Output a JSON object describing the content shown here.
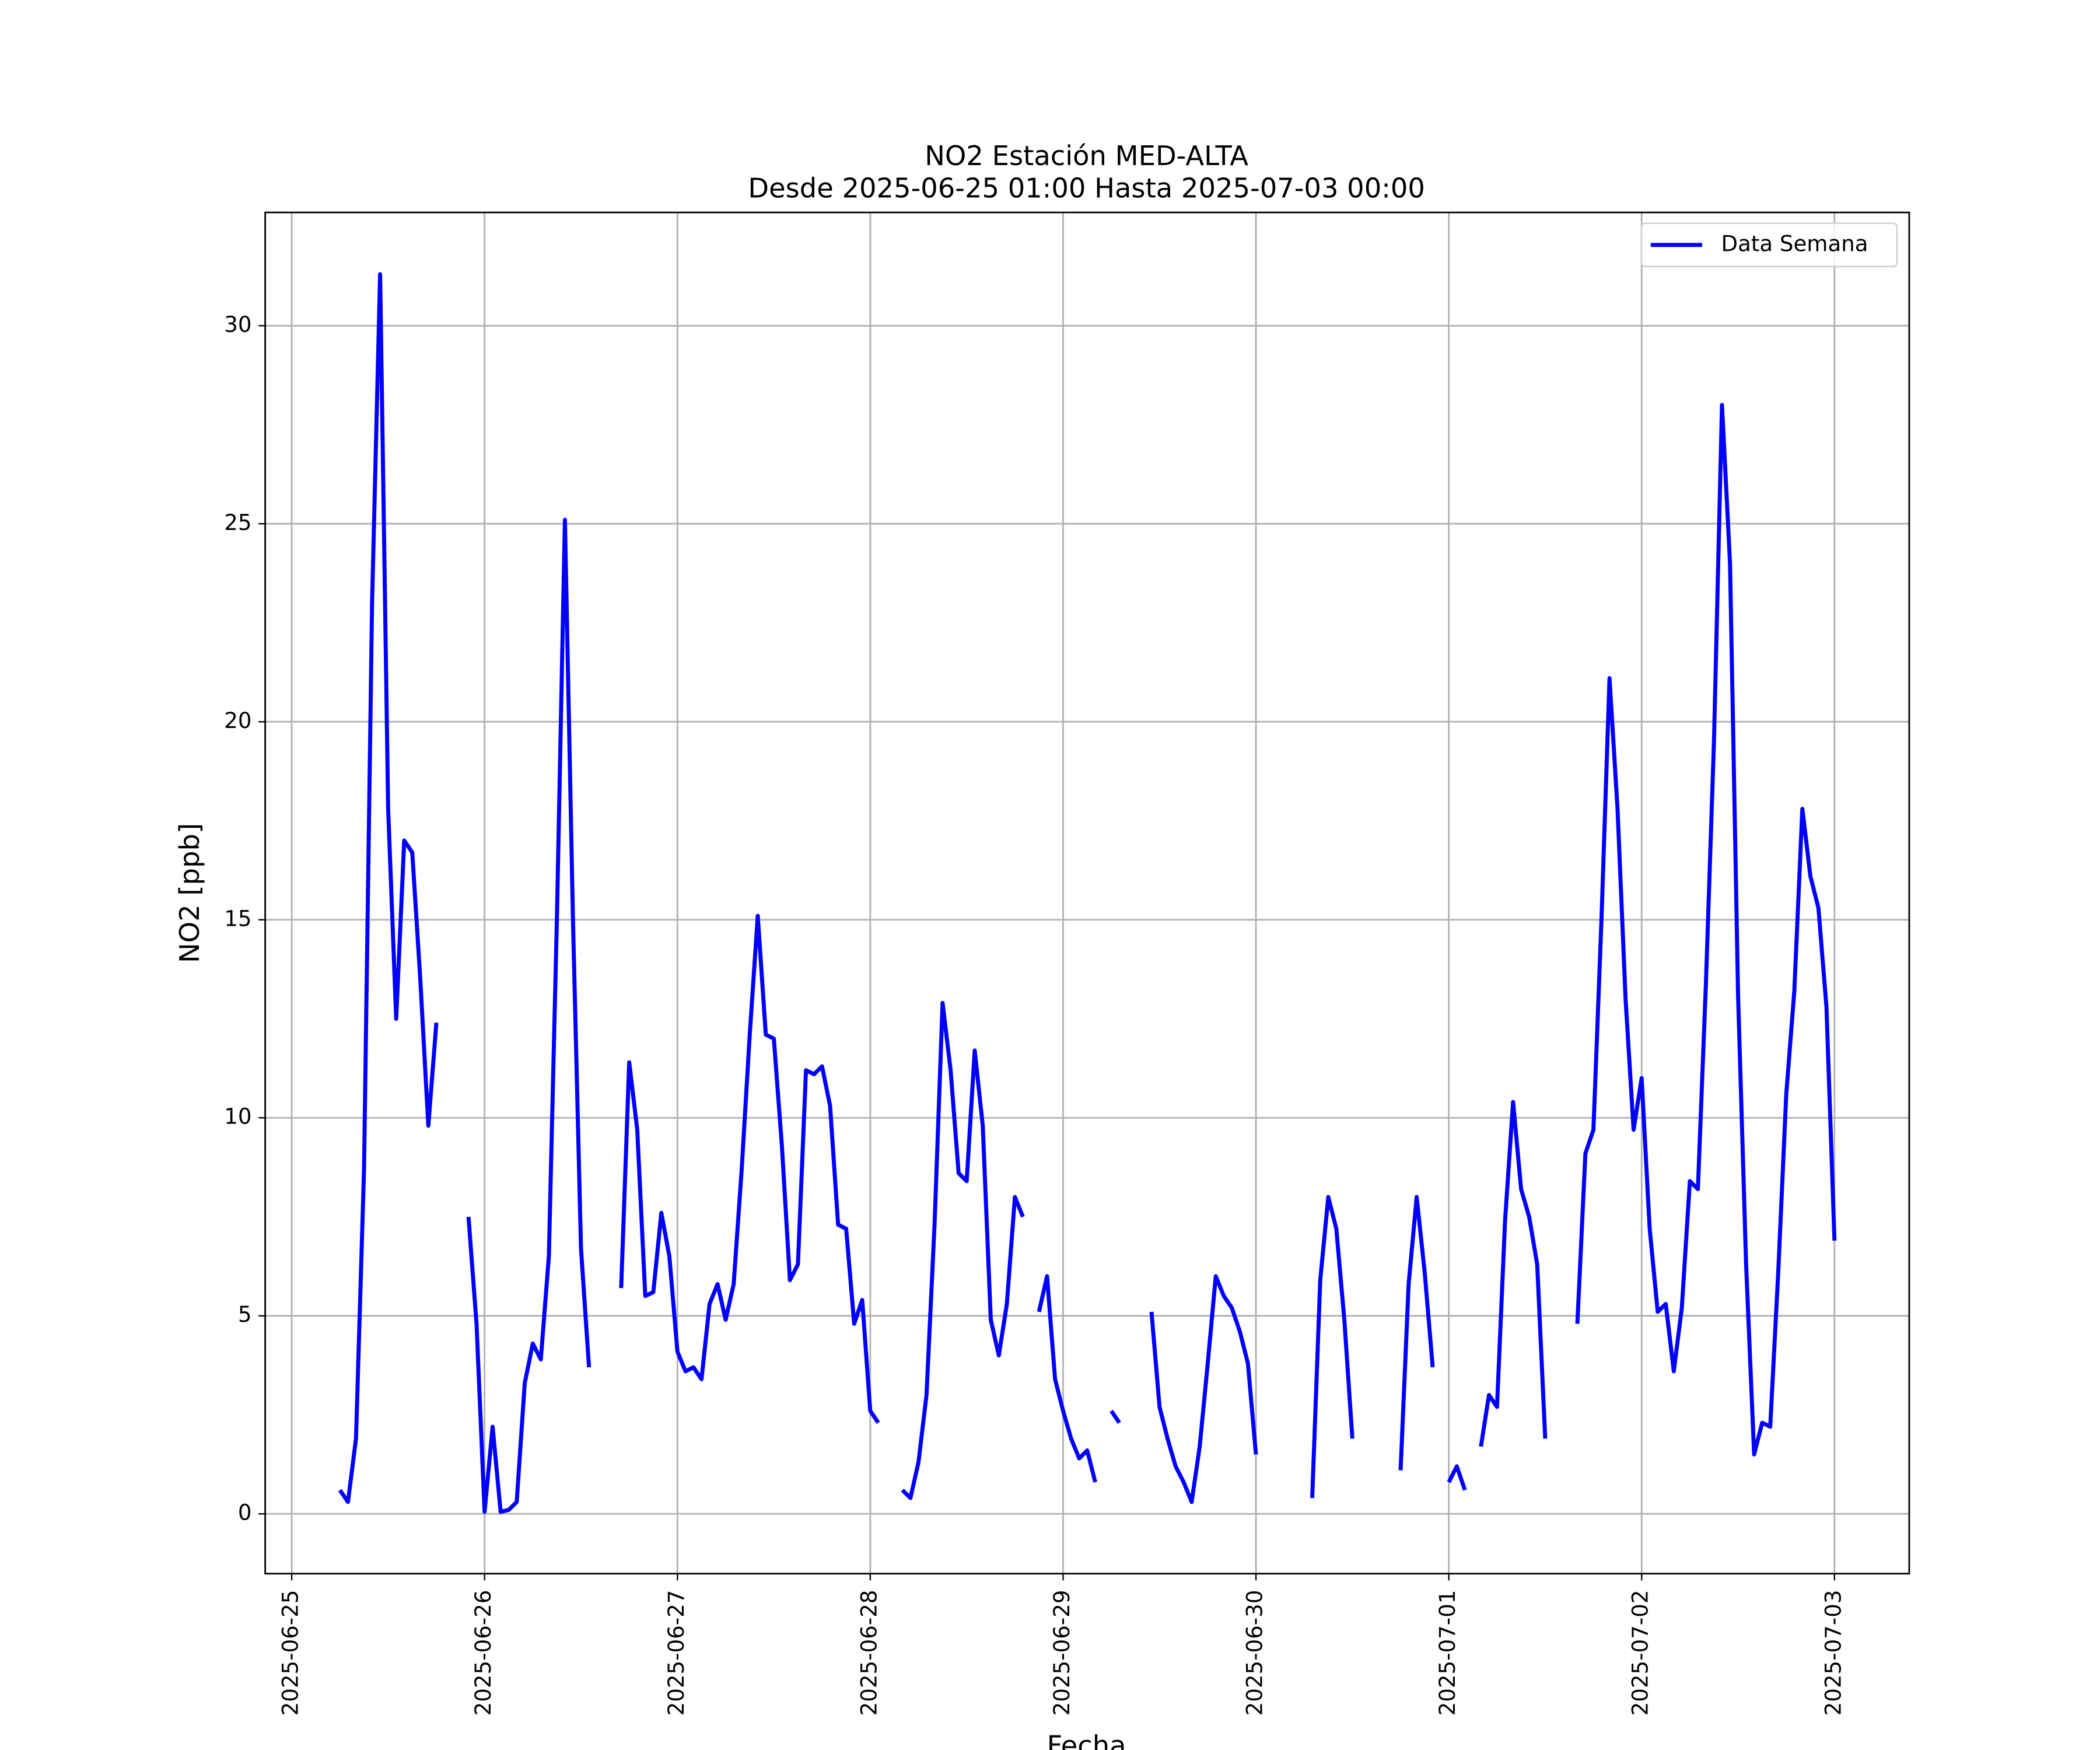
{
  "chart_data": {
    "type": "line",
    "title": "NO2 Estación MED-ALTA",
    "subtitle": "Desde 2025-06-25 01:00 Hasta 2025-07-03 00:00",
    "x_label": "Fecha",
    "y_label": "NO2 [ppb]",
    "legend": "upper right",
    "grid": true,
    "xlim": [
      "2025-06-24 20:42",
      "2025-07-03 09:18"
    ],
    "xticks": [
      "2025-06-25",
      "2025-06-26",
      "2025-06-27",
      "2025-06-28",
      "2025-06-29",
      "2025-06-30",
      "2025-07-01",
      "2025-07-02",
      "2025-07-03"
    ],
    "ylim": [
      -1.51,
      32.86
    ],
    "yticks": [
      0,
      5,
      10,
      15,
      20,
      25,
      30
    ],
    "x": [
      "2025-06-25 01:00",
      "2025-06-25 02:00",
      "2025-06-25 03:00",
      "2025-06-25 04:00",
      "2025-06-25 05:00",
      "2025-06-25 06:00",
      "2025-06-25 07:00",
      "2025-06-25 08:00",
      "2025-06-25 09:00",
      "2025-06-25 10:00",
      "2025-06-25 11:00",
      "2025-06-25 12:00",
      "2025-06-25 13:00",
      "2025-06-25 14:00",
      "2025-06-25 15:00",
      "2025-06-25 16:00",
      "2025-06-25 17:00",
      "2025-06-25 18:00",
      "2025-06-25 19:00",
      "2025-06-25 20:00",
      "2025-06-25 21:00",
      "2025-06-25 22:00",
      "2025-06-25 23:00",
      "2025-06-26 00:00",
      "2025-06-26 01:00",
      "2025-06-26 02:00",
      "2025-06-26 03:00",
      "2025-06-26 04:00",
      "2025-06-26 05:00",
      "2025-06-26 06:00",
      "2025-06-26 07:00",
      "2025-06-26 08:00",
      "2025-06-26 09:00",
      "2025-06-26 10:00",
      "2025-06-26 11:00",
      "2025-06-26 12:00",
      "2025-06-26 13:00",
      "2025-06-26 14:00",
      "2025-06-26 15:00",
      "2025-06-26 16:00",
      "2025-06-26 17:00",
      "2025-06-26 18:00",
      "2025-06-26 19:00",
      "2025-06-26 20:00",
      "2025-06-26 21:00",
      "2025-06-26 22:00",
      "2025-06-26 23:00",
      "2025-06-27 00:00",
      "2025-06-27 01:00",
      "2025-06-27 02:00",
      "2025-06-27 03:00",
      "2025-06-27 04:00",
      "2025-06-27 05:00",
      "2025-06-27 06:00",
      "2025-06-27 07:00",
      "2025-06-27 08:00",
      "2025-06-27 09:00",
      "2025-06-27 10:00",
      "2025-06-27 11:00",
      "2025-06-27 12:00",
      "2025-06-27 13:00",
      "2025-06-27 14:00",
      "2025-06-27 15:00",
      "2025-06-27 16:00",
      "2025-06-27 17:00",
      "2025-06-27 18:00",
      "2025-06-27 19:00",
      "2025-06-27 20:00",
      "2025-06-27 21:00",
      "2025-06-27 22:00",
      "2025-06-27 23:00",
      "2025-06-28 00:00",
      "2025-06-28 01:00",
      "2025-06-28 02:00",
      "2025-06-28 03:00",
      "2025-06-28 04:00",
      "2025-06-28 05:00",
      "2025-06-28 06:00",
      "2025-06-28 07:00",
      "2025-06-28 08:00",
      "2025-06-28 09:00",
      "2025-06-28 10:00",
      "2025-06-28 11:00",
      "2025-06-28 12:00",
      "2025-06-28 13:00",
      "2025-06-28 14:00",
      "2025-06-28 15:00",
      "2025-06-28 16:00",
      "2025-06-28 17:00",
      "2025-06-28 18:00",
      "2025-06-28 19:00",
      "2025-06-28 20:00",
      "2025-06-28 21:00",
      "2025-06-28 22:00",
      "2025-06-28 23:00",
      "2025-06-29 00:00",
      "2025-06-29 01:00",
      "2025-06-29 02:00",
      "2025-06-29 03:00",
      "2025-06-29 04:00",
      "2025-06-29 05:00",
      "2025-06-29 06:00",
      "2025-06-29 07:00",
      "2025-06-29 08:00",
      "2025-06-29 09:00",
      "2025-06-29 10:00",
      "2025-06-29 11:00",
      "2025-06-29 12:00",
      "2025-06-29 13:00",
      "2025-06-29 14:00",
      "2025-06-29 15:00",
      "2025-06-29 16:00",
      "2025-06-29 17:00",
      "2025-06-29 18:00",
      "2025-06-29 19:00",
      "2025-06-29 20:00",
      "2025-06-29 21:00",
      "2025-06-29 22:00",
      "2025-06-29 23:00",
      "2025-06-30 00:00",
      "2025-06-30 01:00",
      "2025-06-30 02:00",
      "2025-06-30 03:00",
      "2025-06-30 04:00",
      "2025-06-30 05:00",
      "2025-06-30 06:00",
      "2025-06-30 07:00",
      "2025-06-30 08:00",
      "2025-06-30 09:00",
      "2025-06-30 10:00",
      "2025-06-30 11:00",
      "2025-06-30 12:00",
      "2025-06-30 13:00",
      "2025-06-30 14:00",
      "2025-06-30 15:00",
      "2025-06-30 16:00",
      "2025-06-30 17:00",
      "2025-06-30 18:00",
      "2025-06-30 19:00",
      "2025-06-30 20:00",
      "2025-06-30 21:00",
      "2025-06-30 22:00",
      "2025-06-30 23:00",
      "2025-07-01 00:00",
      "2025-07-01 01:00",
      "2025-07-01 02:00",
      "2025-07-01 03:00",
      "2025-07-01 04:00",
      "2025-07-01 05:00",
      "2025-07-01 06:00",
      "2025-07-01 07:00",
      "2025-07-01 08:00",
      "2025-07-01 09:00",
      "2025-07-01 10:00",
      "2025-07-01 11:00",
      "2025-07-01 12:00",
      "2025-07-01 13:00",
      "2025-07-01 14:00",
      "2025-07-01 15:00",
      "2025-07-01 16:00",
      "2025-07-01 17:00",
      "2025-07-01 18:00",
      "2025-07-01 19:00",
      "2025-07-01 20:00",
      "2025-07-01 21:00",
      "2025-07-01 22:00",
      "2025-07-01 23:00",
      "2025-07-02 00:00",
      "2025-07-02 01:00",
      "2025-07-02 02:00",
      "2025-07-02 03:00",
      "2025-07-02 04:00",
      "2025-07-02 05:00",
      "2025-07-02 06:00",
      "2025-07-02 07:00",
      "2025-07-02 08:00",
      "2025-07-02 09:00",
      "2025-07-02 10:00",
      "2025-07-02 11:00",
      "2025-07-02 12:00",
      "2025-07-02 13:00",
      "2025-07-02 14:00",
      "2025-07-02 15:00",
      "2025-07-02 16:00",
      "2025-07-02 17:00",
      "2025-07-02 18:00",
      "2025-07-02 19:00",
      "2025-07-02 20:00",
      "2025-07-02 21:00",
      "2025-07-02 22:00",
      "2025-07-02 23:00",
      "2025-07-03 00:00"
    ],
    "series": [
      {
        "name": "Data Semana",
        "color": "#0000ff",
        "values": [
          null,
          null,
          null,
          null,
          null,
          0.6,
          0.3,
          1.9,
          8.7,
          23,
          31.3,
          17.8,
          12.5,
          17.0,
          16.7,
          13.5,
          9.8,
          12.4,
          null,
          null,
          null,
          7.5,
          4.8,
          0.05,
          2.2,
          0.05,
          0.1,
          0.3,
          3.3,
          4.3,
          3.9,
          6.5,
          15,
          25.1,
          15,
          6.7,
          3.7,
          null,
          null,
          null,
          5.7,
          11.4,
          9.7,
          5.5,
          5.6,
          7.6,
          6.5,
          4.1,
          3.6,
          3.7,
          3.4,
          5.3,
          5.8,
          4.9,
          5.8,
          8.7,
          12.1,
          15.1,
          12.1,
          12.0,
          9.3,
          5.9,
          6.3,
          11.2,
          11.1,
          11.3,
          10.3,
          7.3,
          7.2,
          4.8,
          5.4,
          2.6,
          2.3,
          null,
          null,
          0.6,
          0.4,
          1.3,
          3.0,
          7.3,
          12.9,
          11.2,
          8.6,
          8.4,
          11.7,
          9.8,
          4.9,
          4.0,
          5.3,
          8.0,
          7.5,
          null,
          5.1,
          6.0,
          3.4,
          2.6,
          1.9,
          1.4,
          1.6,
          0.8,
          null,
          2.6,
          2.3,
          null,
          null,
          null,
          5.1,
          2.7,
          1.9,
          1.2,
          0.8,
          0.3,
          1.7,
          3.8,
          6.0,
          5.5,
          5.2,
          4.6,
          3.8,
          1.5,
          null,
          null,
          null,
          null,
          null,
          null,
          0.4,
          5.9,
          8.0,
          7.2,
          4.9,
          1.9,
          null,
          null,
          null,
          null,
          null,
          1.1,
          5.8,
          8.0,
          6.1,
          3.7,
          null,
          0.8,
          1.2,
          0.6,
          null,
          1.7,
          3.0,
          2.7,
          7.4,
          10.4,
          8.2,
          7.5,
          6.3,
          1.9,
          null,
          null,
          null,
          4.8,
          9.1,
          9.7,
          15.0,
          21.1,
          17.8,
          13.0,
          9.7,
          11.0,
          7.2,
          5.1,
          5.3,
          3.6,
          5.2,
          8.4,
          8.2,
          13.4,
          19.5,
          28.0,
          24.0,
          13.1,
          6.3,
          1.5,
          2.3,
          2.2,
          6.1,
          10.6,
          13.2,
          17.8,
          16.1,
          15.3,
          12.8,
          6.9
        ]
      }
    ]
  }
}
